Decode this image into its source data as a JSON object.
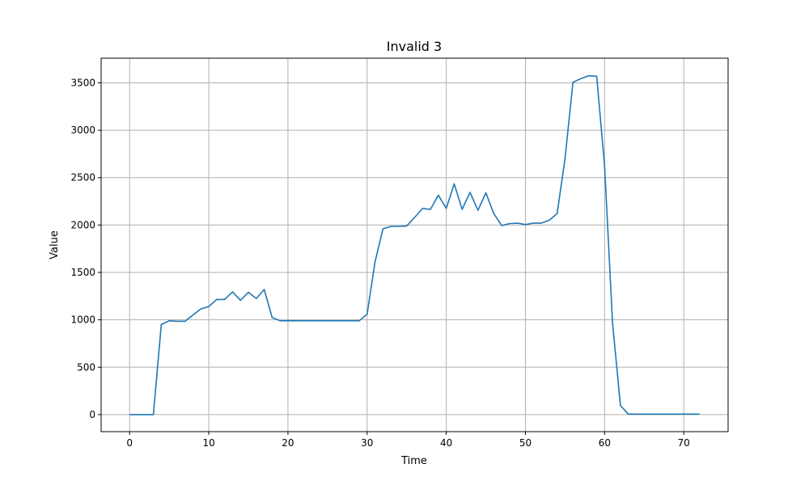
{
  "chart_data": {
    "type": "line",
    "title": "Invalid 3",
    "xlabel": "Time",
    "ylabel": "Value",
    "xlim": [
      -3.6,
      75.6
    ],
    "ylim": [
      -180,
      3760
    ],
    "xticks": [
      0,
      10,
      20,
      30,
      40,
      50,
      60,
      70
    ],
    "yticks": [
      0,
      500,
      1000,
      1500,
      2000,
      2500,
      3000,
      3500
    ],
    "grid": true,
    "line_color": "#1f77b4",
    "series": [
      {
        "x": [
          0,
          1,
          2,
          3,
          4,
          5,
          6,
          7,
          8,
          9,
          10,
          11,
          12,
          13,
          14,
          15,
          16,
          17,
          18,
          19,
          20,
          21,
          22,
          23,
          24,
          25,
          26,
          27,
          28,
          29,
          30,
          31,
          32,
          33,
          34,
          35,
          36,
          37,
          38,
          39,
          40,
          41,
          42,
          43,
          44,
          45,
          46,
          47,
          48,
          49,
          50,
          51,
          52,
          53,
          54,
          55,
          56,
          57,
          58,
          59,
          60,
          61,
          62,
          63,
          64,
          65,
          66,
          67,
          68,
          69,
          70,
          71,
          72
        ],
        "values": [
          0,
          0,
          0,
          0,
          950,
          990,
          985,
          985,
          1050,
          1115,
          1140,
          1215,
          1215,
          1295,
          1205,
          1290,
          1225,
          1320,
          1025,
          990,
          990,
          990,
          990,
          990,
          990,
          990,
          990,
          990,
          990,
          990,
          1060,
          1610,
          1960,
          1985,
          1985,
          1990,
          2080,
          2175,
          2165,
          2315,
          2175,
          2435,
          2165,
          2345,
          2155,
          2340,
          2120,
          1995,
          2015,
          2020,
          2005,
          2020,
          2020,
          2050,
          2120,
          2700,
          3505,
          3545,
          3575,
          3570,
          2620,
          970,
          95,
          5,
          5,
          5,
          5,
          5,
          5,
          5,
          5,
          5,
          5
        ]
      }
    ]
  }
}
